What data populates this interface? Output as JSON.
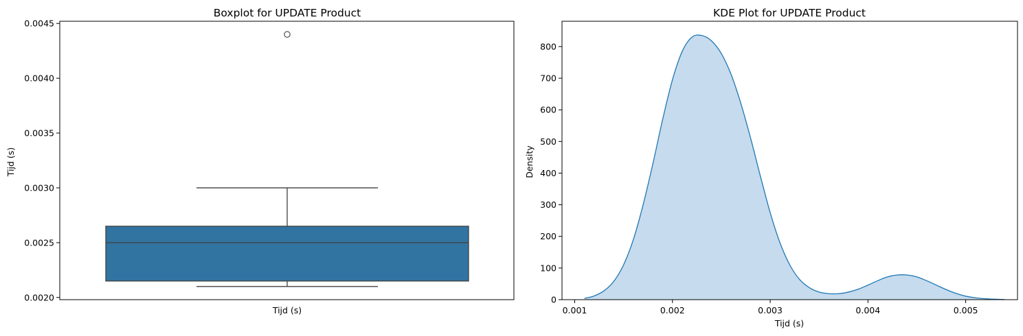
{
  "chart_data": [
    {
      "type": "box",
      "title": "Boxplot for UPDATE Product",
      "xlabel": "Tijd (s)",
      "ylabel": "Tijd (s)",
      "ylim": [
        0.00198,
        0.00452
      ],
      "yticks": [
        0.002,
        0.0025,
        0.003,
        0.0035,
        0.004,
        0.0045
      ],
      "ytick_labels": [
        "0.0020",
        "0.0025",
        "0.0030",
        "0.0035",
        "0.0040",
        "0.0045"
      ],
      "box": {
        "whisker_low": 0.0021,
        "q1": 0.00215,
        "median": 0.0025,
        "q3": 0.00265,
        "whisker_high": 0.003,
        "outliers": [
          0.0044
        ]
      },
      "color": "#3274a1",
      "grid": false
    },
    {
      "type": "area",
      "title": "KDE Plot for UPDATE Product",
      "xlabel": "Tijd (s)",
      "ylabel": "Density",
      "xlim": [
        0.00087,
        0.00553
      ],
      "ylim": [
        0,
        880
      ],
      "xticks": [
        0.001,
        0.002,
        0.003,
        0.004,
        0.005
      ],
      "xtick_labels": [
        "0.001",
        "0.002",
        "0.003",
        "0.004",
        "0.005"
      ],
      "yticks": [
        0,
        100,
        200,
        300,
        400,
        500,
        600,
        700,
        800
      ],
      "ytick_labels": [
        "0",
        "100",
        "200",
        "300",
        "400",
        "500",
        "600",
        "700",
        "800"
      ],
      "x": [
        0.0011,
        0.0012,
        0.0013,
        0.0014,
        0.0015,
        0.0016,
        0.0017,
        0.0018,
        0.0019,
        0.002,
        0.0021,
        0.0022,
        0.0023,
        0.0024,
        0.0025,
        0.0026,
        0.0027,
        0.0028,
        0.0029,
        0.003,
        0.0031,
        0.0032,
        0.0033,
        0.0034,
        0.0035,
        0.0036,
        0.0037,
        0.0038,
        0.0039,
        0.004,
        0.0041,
        0.0042,
        0.0043,
        0.0044,
        0.0045,
        0.0046,
        0.0047,
        0.0048,
        0.0049,
        0.005,
        0.0051,
        0.0052,
        0.0053,
        0.0054
      ],
      "y": [
        4,
        12,
        28,
        58,
        110,
        190,
        300,
        430,
        570,
        695,
        785,
        830,
        835,
        818,
        778,
        712,
        620,
        510,
        390,
        275,
        180,
        110,
        64,
        38,
        24,
        19,
        19,
        24,
        33,
        46,
        60,
        72,
        78,
        78,
        72,
        60,
        46,
        32,
        20,
        11,
        6,
        3,
        1.5,
        0.5
      ],
      "color": "#1f77b4",
      "fill_color": "#c6dbed",
      "grid": false
    }
  ]
}
